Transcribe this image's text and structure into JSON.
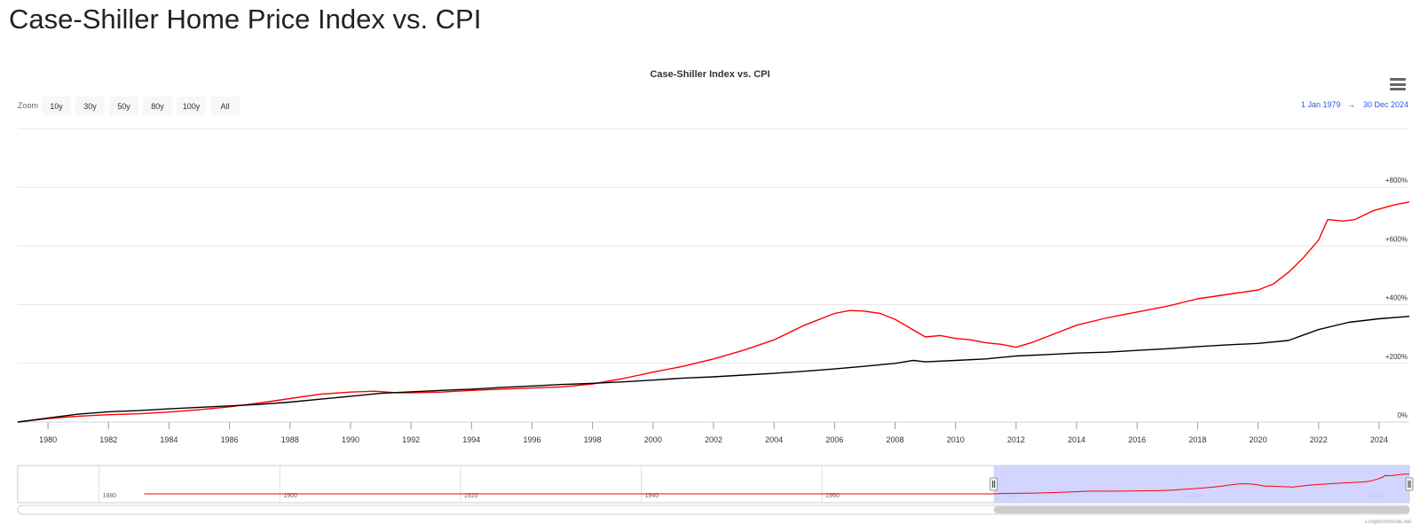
{
  "page": {
    "title": "Case-Shiller Home Price Index vs. CPI"
  },
  "toolbar": {
    "zoom_label": "Zoom",
    "zoom_buttons": [
      "10y",
      "30y",
      "50y",
      "80y",
      "100y",
      "All"
    ],
    "range_from": "1 Jan 1979",
    "range_arrow": "→",
    "range_to": "30 Dec 2024"
  },
  "credit": "Longtermtrends.net",
  "colors": {
    "case_shiller": "#ff0000",
    "cpi": "#000000",
    "navigator_selection": "#ccd0ff",
    "grid": "#e6e6e6"
  },
  "icons": {
    "menu": "hamburger-menu-icon"
  },
  "chart_data": {
    "type": "line",
    "title": "Case-Shiller Index vs. CPI",
    "x_ticks": [
      "1980",
      "1982",
      "1984",
      "1986",
      "1988",
      "1990",
      "1992",
      "1994",
      "1996",
      "1998",
      "2000",
      "2002",
      "2004",
      "2006",
      "2008",
      "2010",
      "2012",
      "2014",
      "2016",
      "2018",
      "2020",
      "2022",
      "2024"
    ],
    "y_ticks": [
      "0%",
      "+200%",
      "+400%",
      "+600%",
      "+800%"
    ],
    "ylim": [
      0,
      1000
    ],
    "xlim": [
      1979.0,
      2025.0
    ],
    "grid": true,
    "series": [
      {
        "color": "#ff0000",
        "x": [
          1979.0,
          1980,
          1981,
          1982,
          1983,
          1984,
          1985,
          1986,
          1987,
          1988,
          1989,
          1990,
          1990.8,
          1991.5,
          1992,
          1993,
          1994,
          1995,
          1996,
          1997,
          1998,
          1999,
          2000,
          2001,
          2002,
          2003,
          2004,
          2005,
          2006,
          2006.5,
          2007,
          2007.5,
          2008,
          2008.5,
          2009,
          2009.5,
          2010,
          2010.5,
          2011,
          2011.5,
          2012,
          2012.5,
          2013,
          2014,
          2015,
          2016,
          2017,
          2018,
          2019,
          2020,
          2020.5,
          2021,
          2021.5,
          2022,
          2022.3,
          2022.8,
          2023.2,
          2023.8,
          2024.5,
          2025.0
        ],
        "values": [
          0,
          12,
          20,
          25,
          28,
          34,
          42,
          52,
          65,
          80,
          95,
          102,
          105,
          100,
          100,
          102,
          108,
          112,
          116,
          120,
          130,
          148,
          170,
          190,
          215,
          245,
          280,
          330,
          370,
          380,
          378,
          370,
          350,
          320,
          290,
          295,
          285,
          280,
          270,
          265,
          255,
          270,
          290,
          330,
          355,
          375,
          395,
          420,
          435,
          450,
          470,
          510,
          560,
          620,
          690,
          685,
          690,
          720,
          740,
          750
        ]
      },
      {
        "color": "#000000",
        "x": [
          1979.0,
          1980,
          1981,
          1982,
          1983,
          1984,
          1985,
          1986,
          1987,
          1988,
          1989,
          1990,
          1991,
          1992,
          1993,
          1994,
          1995,
          1996,
          1997,
          1998,
          1999,
          2000,
          2001,
          2002,
          2003,
          2004,
          2005,
          2006,
          2007,
          2008,
          2008.6,
          2009,
          2010,
          2011,
          2012,
          2013,
          2014,
          2015,
          2016,
          2017,
          2018,
          2019,
          2020,
          2021,
          2022,
          2023,
          2024,
          2025.0
        ],
        "values": [
          0,
          14,
          27,
          35,
          39,
          45,
          50,
          55,
          60,
          68,
          78,
          88,
          98,
          103,
          108,
          112,
          118,
          123,
          128,
          132,
          137,
          143,
          150,
          154,
          160,
          166,
          173,
          181,
          190,
          200,
          210,
          205,
          210,
          215,
          225,
          230,
          235,
          238,
          244,
          250,
          257,
          263,
          268,
          278,
          315,
          340,
          352,
          360
        ]
      }
    ],
    "navigator": {
      "x_ticks": [
        "1880",
        "1900",
        "1920",
        "1940",
        "1960",
        "1980",
        "2000",
        "2020"
      ],
      "xlim": [
        1871,
        2025
      ],
      "selection": [
        1979,
        2025
      ]
    }
  }
}
